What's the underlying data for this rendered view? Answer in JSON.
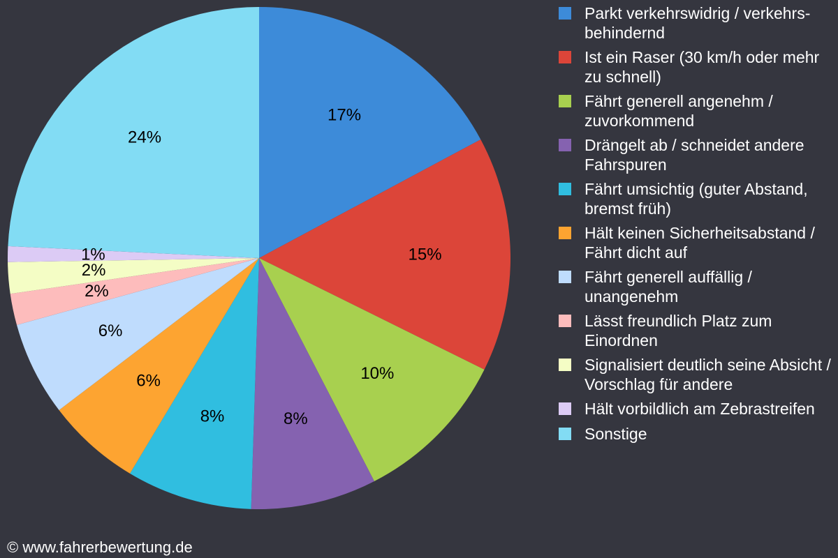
{
  "chart_data": {
    "type": "pie",
    "categories": [
      "Parkt verkehrswidrig / verkehrs-behindernd",
      "Ist ein Raser (30 km/h oder mehr zu schnell)",
      "Fährt generell angenehm / zuvorkommend",
      "Drängelt ab / schneidet andere Fahrspuren",
      "Fährt umsichtig (guter Abstand, bremst früh)",
      "Hält keinen Sicherheitsabstand / Fährt dicht auf",
      "Fährt generell auffällig / unangenehm",
      "Lässt freundlich Platz zum Einordnen",
      "Signalisiert deutlich seine Absicht / Vorschlag für andere",
      "Hält vorbildlich am Zebrastreifen",
      "Sonstige"
    ],
    "values": [
      17,
      15,
      10,
      8,
      8,
      6,
      6,
      2,
      2,
      1,
      24
    ],
    "value_labels": [
      "17%",
      "15%",
      "10%",
      "8%",
      "8%",
      "6%",
      "6%",
      "2%",
      "2%",
      "1%",
      "24%"
    ],
    "colors": [
      "#3d8bd9",
      "#dc4539",
      "#a8d04f",
      "#8562b0",
      "#30bee0",
      "#fda431",
      "#bfdcfd",
      "#fdbcbc",
      "#f4fdc5",
      "#dccbf5",
      "#82dcf4"
    ],
    "footer": "© www.fahrerbewertung.de"
  }
}
